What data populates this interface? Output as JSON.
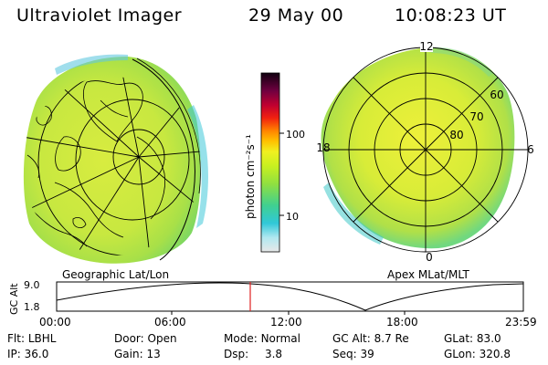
{
  "header": {
    "instrument": "Ultraviolet Imager",
    "date": "29 May 00",
    "time": "10:08:23 UT"
  },
  "left_panel": {
    "caption": "Geographic Lat/Lon"
  },
  "right_panel": {
    "caption": "Apex MLat/MLT",
    "mlt_labels": [
      "12",
      "18",
      "6",
      "0"
    ],
    "mlat_labels": [
      "60",
      "70",
      "80"
    ]
  },
  "colorbar": {
    "unit_label": "photon cm⁻²s⁻¹",
    "ticks": [
      "100",
      "10"
    ]
  },
  "timeline": {
    "axis_title": "GC Alt",
    "y_ticks": [
      "9.0",
      "1.8"
    ],
    "x_ticks": [
      "00:00",
      "06:00",
      "12:00",
      "18:00",
      "23:59"
    ]
  },
  "info": {
    "row1": [
      {
        "key": "Flt:",
        "value": "LBHL"
      },
      {
        "key": "Door:",
        "value": "Open"
      },
      {
        "key": "Mode:",
        "value": "Normal"
      },
      {
        "key": "GC Alt:",
        "value": "8.7 Re"
      },
      {
        "key": "GLat:",
        "value": "83.0"
      }
    ],
    "row2": [
      {
        "key": "IP:",
        "value": "36.0"
      },
      {
        "key": "Gain:",
        "value": "13"
      },
      {
        "key": "Dsp:",
        "value": "3.8"
      },
      {
        "key": "Seq:",
        "value": "39"
      },
      {
        "key": "GLon:",
        "value": "320.8"
      }
    ]
  },
  "colors": {
    "aurora_green": "#b8e830",
    "aurora_yellow": "#e6f03a",
    "cyan": "#40d0c8",
    "cursor": "#e02020"
  }
}
